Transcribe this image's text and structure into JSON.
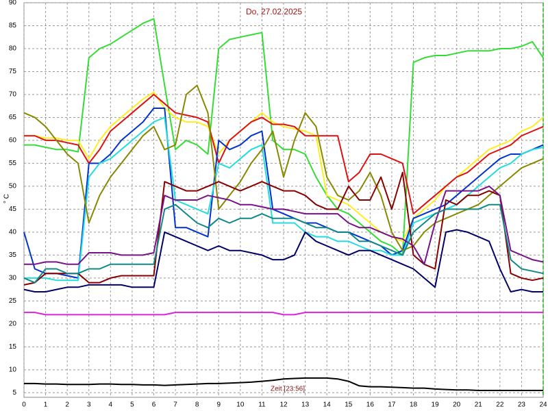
{
  "chart_data": {
    "type": "line",
    "title": "Do, 27.02.2025",
    "y_label": "° C",
    "x_label": "Zeit [23:56]",
    "x": [
      0,
      0.5,
      1,
      1.5,
      2,
      2.5,
      3,
      3.5,
      4,
      4.5,
      5,
      5.5,
      6,
      6.5,
      7,
      7.5,
      8,
      8.5,
      9,
      9.5,
      10,
      10.5,
      11,
      11.5,
      12,
      12.5,
      13,
      13.5,
      14,
      14.5,
      15,
      15.5,
      16,
      16.5,
      17,
      17.5,
      18,
      18.5,
      19,
      19.5,
      20,
      20.5,
      21,
      21.5,
      22,
      22.5,
      23,
      23.5,
      24
    ],
    "xlim": [
      0,
      24
    ],
    "xticks": [
      0,
      1,
      2,
      3,
      4,
      5,
      6,
      7,
      8,
      9,
      10,
      11,
      12,
      13,
      14,
      15,
      16,
      17,
      18,
      19,
      20,
      21,
      22,
      23,
      24
    ],
    "ylim": [
      4,
      90
    ],
    "yticks": [
      5,
      10,
      15,
      20,
      25,
      30,
      35,
      40,
      45,
      50,
      55,
      60,
      65,
      70,
      75,
      80,
      85,
      90
    ],
    "grid": true,
    "current_x": 24,
    "current_color": "#22aa22",
    "series": [
      {
        "color": "#33dd33",
        "values": [
          59,
          59,
          58.5,
          58,
          58,
          57.5,
          78,
          80,
          81,
          82.5,
          84,
          85.5,
          86.5,
          72,
          58,
          60,
          59,
          57,
          80,
          82,
          82.5,
          83,
          83.5,
          60,
          58,
          58,
          57,
          52,
          48,
          45,
          44,
          42,
          40,
          38,
          37,
          35,
          77,
          78,
          78.5,
          78.5,
          79,
          79.5,
          79.5,
          79.5,
          80,
          80,
          80.5,
          81.5,
          78
        ]
      },
      {
        "color": "#ffee22",
        "values": [
          61,
          61,
          60.5,
          60.5,
          60,
          60,
          56,
          60,
          63,
          65,
          67,
          69,
          70.5,
          67,
          65,
          64,
          64,
          63,
          57,
          60,
          62,
          64,
          66,
          64,
          63,
          62.5,
          62,
          61,
          48,
          47,
          46,
          44,
          42,
          40,
          39,
          38,
          43,
          45,
          47,
          50,
          52,
          54,
          56,
          58,
          59,
          60,
          62,
          63,
          65
        ]
      },
      {
        "color": "#dd1111",
        "values": [
          61,
          61,
          60,
          60,
          59.5,
          59,
          55,
          58,
          62,
          64,
          66,
          68,
          70,
          68,
          66,
          65.5,
          65,
          64,
          55,
          60,
          62,
          64,
          65,
          63.5,
          63.5,
          63,
          61,
          61,
          61,
          61,
          51,
          53,
          57,
          57,
          56,
          55,
          44,
          46,
          48,
          50,
          52,
          53,
          55,
          57,
          58,
          59,
          61,
          62,
          63
        ]
      },
      {
        "color": "#0033cc",
        "values": [
          40,
          32,
          31,
          31,
          30.5,
          30,
          55,
          55,
          57,
          60,
          62,
          64,
          67,
          67,
          41,
          41,
          40,
          39,
          60,
          58,
          59,
          61,
          62,
          45,
          44,
          43,
          42,
          42,
          41,
          40,
          40,
          39,
          38,
          37,
          35,
          36,
          43,
          44,
          45,
          46,
          48,
          50,
          52,
          54,
          56,
          57,
          57,
          58,
          59
        ]
      },
      {
        "color": "#22dddd",
        "values": [
          30,
          30,
          30,
          29.5,
          29.5,
          29.5,
          52,
          55,
          56,
          58,
          60,
          62,
          64,
          65,
          47,
          46,
          45,
          44,
          55,
          54,
          56,
          58,
          59,
          42,
          42,
          42,
          40,
          39,
          39,
          38,
          38,
          37,
          36,
          36,
          35,
          35,
          42,
          43,
          44,
          45,
          46,
          48,
          50,
          52,
          54,
          55,
          57,
          58,
          58.5
        ]
      },
      {
        "color": "#888800",
        "values": [
          66,
          65,
          63,
          60,
          57,
          55,
          42,
          48,
          52,
          55,
          58,
          61,
          63,
          58,
          59,
          70,
          72,
          66,
          45,
          48,
          51,
          55,
          58,
          62,
          52,
          60,
          66,
          63,
          52,
          48,
          47,
          49,
          53,
          48,
          40,
          36,
          37,
          40,
          42,
          43,
          44,
          45,
          46,
          48,
          50,
          52,
          54,
          55,
          56
        ]
      },
      {
        "color": "#880000",
        "values": [
          28.5,
          29,
          31,
          31,
          31,
          31,
          29,
          29,
          30,
          30.5,
          30.5,
          30.5,
          30.5,
          51,
          50,
          49,
          49,
          50,
          51,
          50,
          49,
          50,
          51,
          50,
          49,
          49,
          48,
          46,
          45,
          45,
          50,
          47,
          47,
          52,
          45,
          53,
          35,
          33,
          32,
          47,
          46,
          48,
          48,
          49,
          48,
          31,
          30,
          29.5,
          30
        ]
      },
      {
        "color": "#771188",
        "values": [
          33,
          33,
          33.5,
          33.5,
          33,
          33,
          35.5,
          35.5,
          35.5,
          35,
          35,
          35,
          35.5,
          48,
          47,
          47,
          47,
          48,
          47.5,
          47,
          46,
          46,
          45.5,
          45,
          45,
          44.5,
          44,
          44,
          44,
          44,
          42,
          41,
          41,
          40,
          39,
          38.5,
          37,
          33,
          42,
          49,
          49,
          49,
          49,
          50,
          48,
          36,
          35,
          34,
          33.5
        ]
      },
      {
        "color": "#118888",
        "values": [
          30,
          29,
          32,
          32,
          31,
          31,
          32,
          32,
          33,
          33,
          33,
          33,
          33,
          45,
          46,
          44,
          42,
          41,
          43,
          42,
          43,
          43,
          44,
          43,
          43,
          43,
          42,
          41,
          41,
          40,
          40,
          38,
          38,
          37,
          36,
          35,
          40,
          42,
          44,
          45,
          45,
          45,
          45,
          46,
          46,
          34,
          32,
          31.5,
          31
        ]
      },
      {
        "color": "#000066",
        "values": [
          27.5,
          27,
          27,
          27.5,
          28,
          28,
          28.5,
          28.5,
          28.5,
          28.5,
          28,
          28,
          28,
          40,
          39,
          38,
          37,
          36,
          37,
          36,
          36,
          35.5,
          35,
          34,
          34,
          35,
          40,
          38,
          37,
          36,
          35,
          36,
          36,
          35,
          34,
          33,
          32,
          30,
          28,
          40,
          40.5,
          40,
          39,
          38,
          32,
          27,
          27.5,
          27,
          27
        ]
      },
      {
        "color": "#dd22dd",
        "values": [
          22.5,
          22.5,
          22,
          22,
          22,
          22,
          22,
          22,
          22,
          22,
          22,
          22,
          22,
          22,
          22.5,
          22.5,
          22.5,
          22.5,
          22.5,
          22.5,
          22.5,
          22.5,
          22.5,
          22.5,
          22,
          22,
          22.5,
          22.5,
          22.5,
          22.5,
          22.5,
          22.5,
          22.5,
          22.5,
          22.5,
          22.5,
          22.5,
          22.5,
          22.5,
          22.5,
          22.5,
          22.5,
          22.5,
          22.5,
          22.5,
          22.5,
          22.5,
          22.5,
          22.5
        ]
      },
      {
        "color": "#000000",
        "values": [
          7,
          7,
          6.9,
          6.9,
          6.8,
          6.8,
          6.8,
          6.9,
          6.9,
          6.8,
          6.8,
          6.7,
          6.7,
          6.6,
          6.7,
          6.8,
          6.9,
          7,
          7,
          7.1,
          7.2,
          7.3,
          7.5,
          7.7,
          8,
          8.1,
          8.2,
          8.2,
          8.2,
          8,
          7.5,
          6.5,
          6.3,
          6.3,
          6.2,
          6.1,
          6,
          6,
          5.8,
          5.7,
          5.6,
          5.6,
          5.5,
          5.5,
          5.5,
          5.5,
          5.5,
          5.5,
          5.5
        ]
      }
    ]
  }
}
